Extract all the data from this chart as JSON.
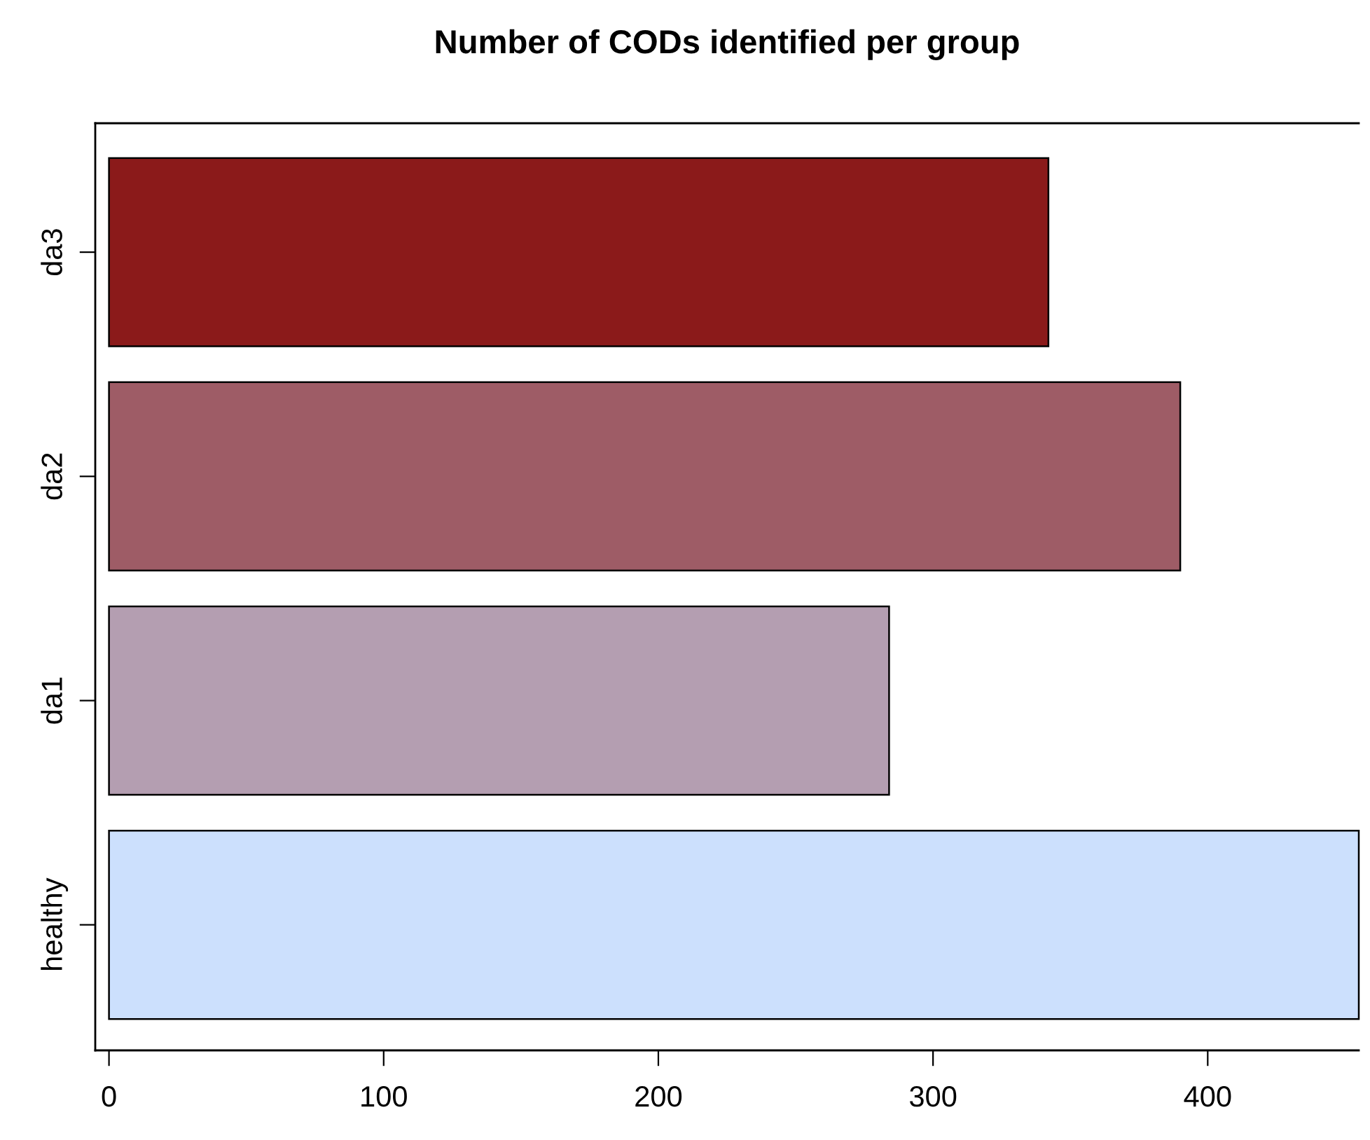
{
  "chart_data": {
    "type": "bar",
    "orientation": "horizontal",
    "title": "Number of CODs identified per group",
    "categories": [
      "da3",
      "da2",
      "da1",
      "healthy"
    ],
    "values": [
      342,
      390,
      284,
      455
    ],
    "colors": [
      "#8b1a1a",
      "#9e5c66",
      "#b49eb1",
      "#cce0fd"
    ],
    "xlim": [
      -5,
      455
    ],
    "xticks": [
      0,
      100,
      200,
      300,
      400
    ],
    "grid": false,
    "legend": false
  }
}
